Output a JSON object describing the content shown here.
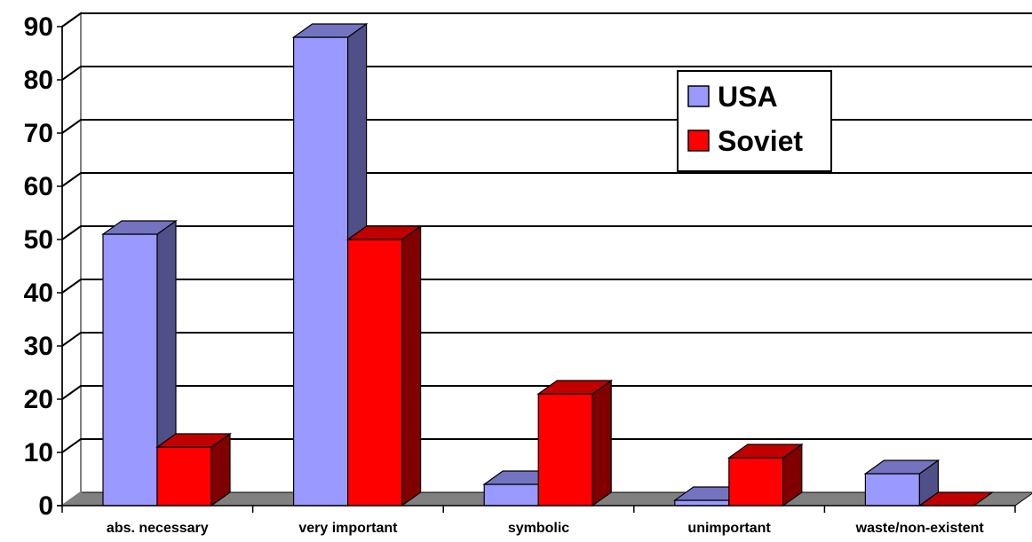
{
  "chart_data": {
    "type": "bar",
    "style": "3d-clustered-column",
    "categories": [
      "abs. necessary",
      "very important",
      "symbolic",
      "unimportant",
      "waste/non-existent"
    ],
    "series": [
      {
        "name": "USA",
        "values": [
          51,
          88,
          4,
          1,
          6
        ],
        "color": "#9999ff",
        "side_color": "#505088",
        "top_color": "#7373c0"
      },
      {
        "name": "Soviet",
        "values": [
          11,
          50,
          21,
          9,
          0
        ],
        "color": "#ff0000",
        "side_color": "#800000",
        "top_color": "#c00000"
      }
    ],
    "yticks": [
      "0",
      "10",
      "20",
      "30",
      "40",
      "50",
      "60",
      "70",
      "80",
      "90"
    ],
    "ylim": [
      0,
      90
    ],
    "grid": true,
    "legend": {
      "position": "top-right",
      "entries": [
        "USA",
        "Soviet"
      ]
    },
    "colors": {
      "wall": "#808080",
      "floor": "#808080",
      "gridline": "#000000"
    }
  }
}
